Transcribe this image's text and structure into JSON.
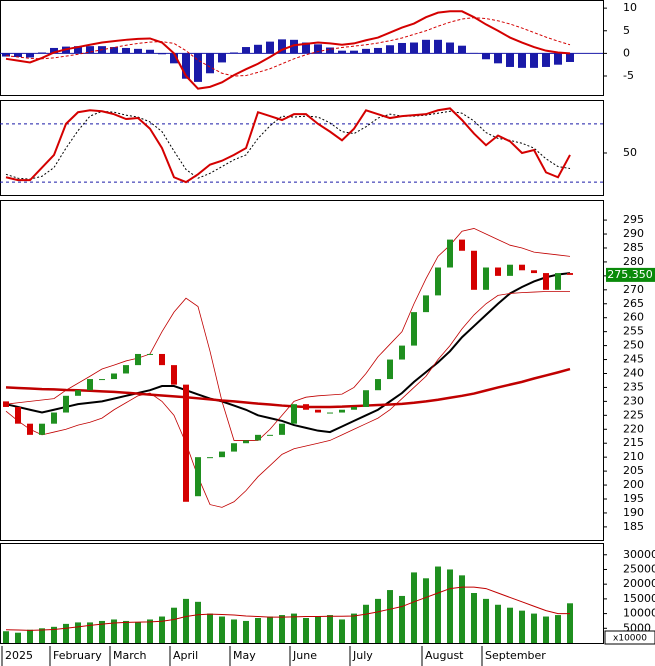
{
  "chart_data": [
    {
      "type": "macd",
      "ylim": [
        -9.2,
        11.8
      ],
      "yticks": [
        -5,
        0,
        5,
        10
      ],
      "macd": {
        "color": "#d40000",
        "values": [
          -1.2,
          -1.6,
          -2,
          -1,
          0.2,
          0.9,
          1.4,
          1.9,
          2.4,
          2.7,
          3,
          3.2,
          3.3,
          2.4,
          0,
          -5,
          -7.8,
          -7.4,
          -6.4,
          -4.8,
          -3.5,
          -2.3,
          -0.8,
          0.8,
          1.8,
          2.1,
          2.4,
          2.2,
          1.9,
          2.2,
          2.9,
          3.5,
          4.6,
          5.7,
          6.6,
          8,
          9,
          9.3,
          9.3,
          8,
          6.4,
          5,
          3.5,
          2.4,
          1.4,
          0.6,
          0.2,
          0
        ]
      },
      "signal": {
        "color": "#d40000",
        "values": [
          -0.5,
          -0.8,
          -1.1,
          -1.2,
          -1,
          -0.6,
          -0.2,
          0.3,
          0.8,
          1.3,
          1.8,
          2.2,
          2.5,
          2.6,
          2.2,
          0.6,
          -1.5,
          -3,
          -4.4,
          -5,
          -4.9,
          -4.2,
          -3.4,
          -2.3,
          -1.2,
          -0.3,
          0.4,
          0.9,
          1.3,
          1.6,
          1.9,
          2.3,
          2.8,
          3.4,
          4.2,
          5,
          6,
          6.9,
          7.6,
          7.9,
          7.7,
          7.2,
          6.5,
          5.6,
          4.6,
          3.6,
          2.7,
          1.9
        ]
      },
      "histogram": {
        "color": "#1a1aa8",
        "values": [
          -0.7,
          -0.8,
          -0.9,
          0.2,
          1.2,
          1.5,
          1.6,
          1.6,
          1.6,
          1.4,
          1.2,
          1,
          0.8,
          -0.2,
          -2.2,
          -5.6,
          -6.3,
          -4.4,
          -2,
          0.2,
          1.4,
          1.9,
          2.6,
          3.1,
          3,
          2.4,
          2,
          1.3,
          0.6,
          0.6,
          1,
          1.2,
          1.8,
          2.3,
          2.4,
          3,
          3,
          2.4,
          1.7,
          0.1,
          -1.3,
          -2.2,
          -3,
          -3.2,
          -3.2,
          -3,
          -2.5,
          -1.9
        ]
      }
    },
    {
      "type": "oscillator",
      "ylim": [
        6.7,
        104.6
      ],
      "yticks": [
        50
      ],
      "levels": [
        20,
        80
      ],
      "level_color": "#1a1aa8",
      "k": {
        "color": "#d40000",
        "values": [
          25,
          22,
          22,
          35,
          48,
          80,
          92,
          94,
          93,
          90,
          85,
          86,
          75,
          55,
          25,
          20,
          28,
          38,
          42,
          48,
          55,
          92,
          88,
          84,
          90,
          90,
          80,
          72,
          63,
          75,
          94,
          90,
          86,
          88,
          89,
          90,
          94,
          96,
          84,
          70,
          58,
          68,
          62,
          50,
          53,
          30,
          25,
          48
        ]
      },
      "d": {
        "color": "#000000",
        "values": [
          28,
          24,
          23,
          26,
          35,
          55,
          73,
          88,
          93,
          92,
          89,
          87,
          82,
          72,
          52,
          33,
          24,
          29,
          36,
          43,
          48,
          65,
          78,
          88,
          87,
          88,
          87,
          81,
          72,
          70,
          77,
          86,
          90,
          88,
          88,
          89,
          91,
          93,
          91,
          83,
          71,
          65,
          63,
          60,
          55,
          44,
          36,
          34
        ]
      }
    },
    {
      "type": "candlestick",
      "ylim": [
        180.3,
        302.2
      ],
      "yticks": [
        185,
        190,
        195,
        200,
        205,
        210,
        215,
        220,
        225,
        230,
        235,
        240,
        245,
        250,
        255,
        260,
        265,
        270,
        275,
        280,
        285,
        290,
        295
      ],
      "up_color": "#1f8f1f",
      "down_color": "#d40000",
      "open": [
        230,
        228,
        222,
        218,
        222,
        226,
        232,
        234,
        238,
        238,
        240,
        243,
        247,
        247,
        243,
        236,
        196,
        210,
        210,
        212,
        215,
        216,
        218,
        218,
        222,
        229,
        227,
        226,
        226,
        227,
        228,
        234,
        238,
        245,
        250,
        262,
        268,
        278,
        288,
        284,
        270,
        278,
        275,
        279,
        277,
        276,
        270,
        276
      ],
      "close": [
        228,
        222,
        218,
        222,
        226,
        232,
        234,
        238,
        238,
        240,
        243,
        247,
        247,
        243,
        236,
        194,
        210,
        210,
        212,
        215,
        216,
        218,
        218,
        222,
        229,
        227,
        226,
        226,
        227,
        228,
        234,
        238,
        245,
        250,
        262,
        268,
        278,
        288,
        284,
        270,
        278,
        275,
        279,
        277,
        276,
        270,
        276,
        275.35
      ],
      "last_label": "275.350",
      "last_color": "#0a8a0a",
      "overlays": [
        {
          "color": "#000000",
          "width": 2,
          "values": [
            229,
            228,
            227,
            226,
            227,
            228,
            229,
            229.5,
            230,
            231,
            232,
            233,
            234,
            235.5,
            235.5,
            234,
            232.5,
            231,
            230,
            228.5,
            227,
            225,
            224,
            223,
            221.5,
            220.5,
            219.5,
            219,
            221,
            223,
            225,
            227,
            230,
            233,
            237,
            240.5,
            244,
            248,
            253,
            257,
            261,
            265,
            268.7,
            271,
            273,
            274.5,
            275.5,
            276
          ]
        },
        {
          "color": "#c00000",
          "width": 2.5,
          "values": [
            235,
            234.8,
            234.6,
            234.4,
            234.3,
            234.1,
            234,
            233.8,
            233.6,
            233.4,
            233.1,
            232.8,
            232.4,
            232.1,
            231.8,
            231.5,
            231.1,
            230.7,
            230.3,
            230,
            229.6,
            229.2,
            228.9,
            228.5,
            228.2,
            228,
            228,
            228,
            228.1,
            228.3,
            228.5,
            228.7,
            228.9,
            229.1,
            229.5,
            230,
            230.6,
            231.3,
            232,
            232.8,
            233.9,
            235,
            236,
            237,
            238.2,
            239.3,
            240.4,
            241.6
          ]
        },
        {
          "color": "#c00000",
          "width": 0.8,
          "values": [
            229,
            229.5,
            230,
            230.5,
            231,
            234,
            236.5,
            239,
            241.6,
            243,
            244.5,
            245.5,
            247,
            255,
            262,
            267,
            264,
            248,
            230,
            216,
            216,
            216,
            220,
            225,
            230,
            231.5,
            232,
            232.3,
            232.6,
            235,
            240,
            246,
            250.5,
            255,
            265,
            274,
            282,
            286,
            291,
            292,
            290,
            288,
            286,
            285,
            283.5,
            283,
            282.5,
            282
          ]
        },
        {
          "color": "#c00000",
          "width": 0.8,
          "values": [
            226.5,
            223,
            220,
            218,
            219,
            220,
            221.5,
            222.5,
            224,
            227,
            229.5,
            232,
            233,
            230,
            225,
            215,
            203,
            193,
            192,
            194,
            198,
            203,
            207,
            211,
            213,
            214,
            215,
            216,
            218,
            220,
            222,
            224,
            227,
            231,
            235,
            239,
            245,
            250,
            256,
            261,
            265,
            268,
            268.7,
            269,
            269.2,
            269.4,
            269.4,
            269.4
          ]
        }
      ]
    },
    {
      "type": "bar",
      "ylim": [
        0,
        34000
      ],
      "yticks": [
        5000,
        10000,
        15000,
        20000,
        25000,
        30000
      ],
      "unit_label": "x10000",
      "color": "#1f8f1f",
      "categories": [
        "2025",
        null,
        null,
        null,
        "February",
        null,
        null,
        null,
        null,
        "March",
        null,
        null,
        null,
        null,
        "April",
        null,
        null,
        null,
        null,
        "May",
        null,
        null,
        null,
        null,
        "June",
        null,
        null,
        null,
        null,
        "July",
        null,
        null,
        null,
        null,
        null,
        "August",
        null,
        null,
        null,
        null,
        "September",
        null,
        null,
        null,
        null,
        null,
        null,
        null
      ],
      "values": [
        4000,
        3500,
        4500,
        5000,
        5500,
        6500,
        7000,
        7000,
        7500,
        8000,
        7500,
        7000,
        8000,
        9000,
        12000,
        15000,
        14000,
        10000,
        9000,
        8000,
        7500,
        8500,
        9000,
        9500,
        10000,
        8500,
        9000,
        9500,
        8000,
        10000,
        13000,
        15000,
        18000,
        16000,
        24000,
        22000,
        26000,
        25000,
        23000,
        17000,
        15000,
        13000,
        12000,
        11000,
        10000,
        9000,
        9500,
        13500
      ],
      "ma": {
        "color": "#c00000",
        "values": [
          4500,
          4400,
          4300,
          4400,
          4600,
          5000,
          5500,
          6000,
          6400,
          6800,
          7000,
          7100,
          7200,
          7400,
          8000,
          9000,
          9600,
          9800,
          9700,
          9500,
          9200,
          9000,
          8800,
          8800,
          8900,
          9000,
          9000,
          9100,
          9100,
          9200,
          9800,
          10600,
          11500,
          12400,
          14000,
          15500,
          17000,
          18500,
          19000,
          19000,
          18500,
          17000,
          15500,
          14000,
          12500,
          11000,
          10000,
          10000
        ]
      }
    }
  ]
}
